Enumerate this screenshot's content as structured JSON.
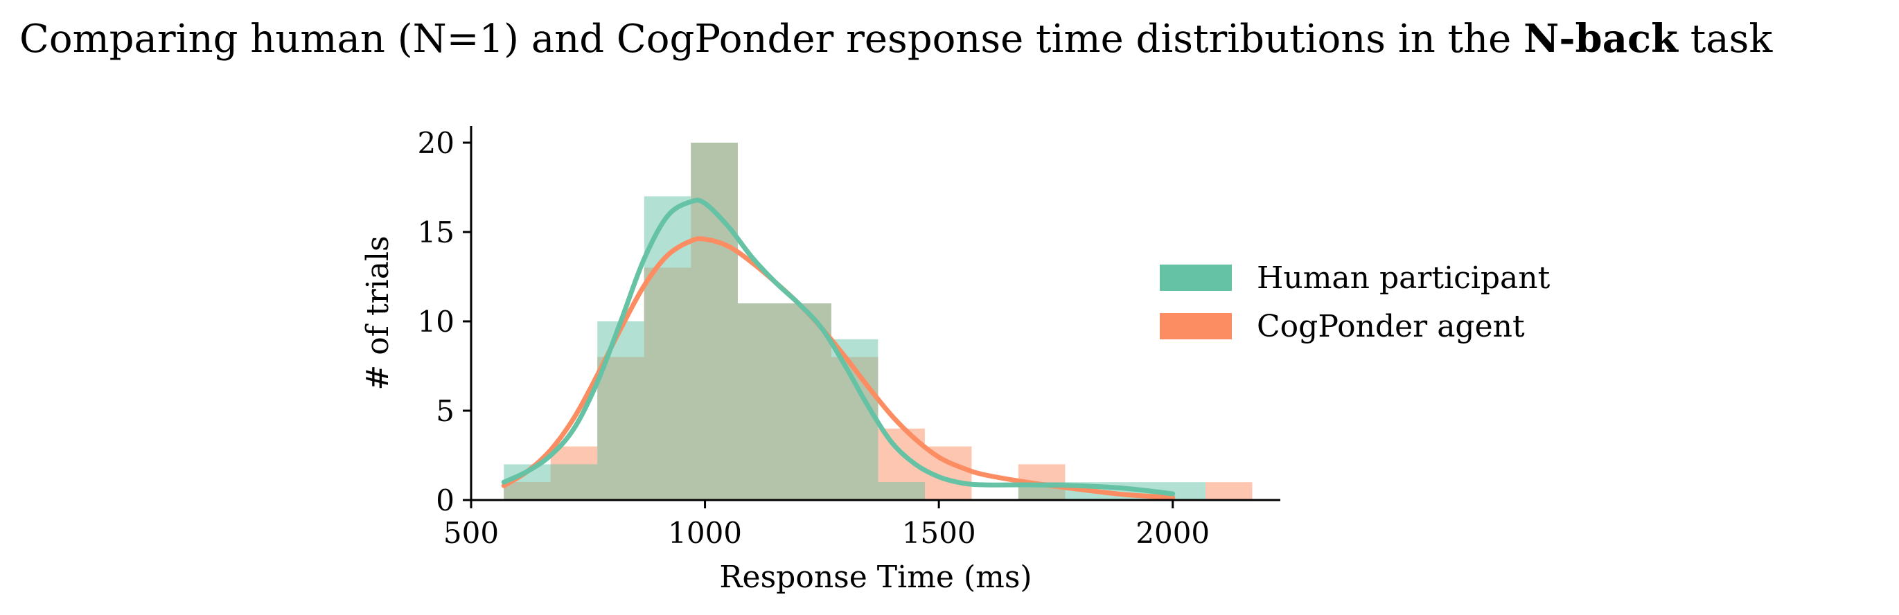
{
  "title": {
    "prefix": "Comparing human (N=1) and CogPonder response time distributions in the ",
    "bold": "N-back",
    "suffix": " task"
  },
  "colors": {
    "human": "#66c2a5",
    "agent": "#fc8d62",
    "overlap": "#b3c4ab"
  },
  "chart_data": {
    "type": "bar",
    "subtype": "overlaid-histogram-with-kde",
    "xlabel": "Response Time (ms)",
    "ylabel": "# of trials",
    "xlim": [
      500,
      2230
    ],
    "ylim": [
      0,
      20
    ],
    "xticks": [
      500,
      1000,
      1500,
      2000
    ],
    "yticks": [
      0,
      5,
      10,
      15,
      20
    ],
    "bin_edges": [
      570,
      670,
      770,
      870,
      970,
      1070,
      1170,
      1270,
      1370,
      1470,
      1570,
      1670,
      1770,
      1870,
      1970,
      2070,
      2170
    ],
    "series": [
      {
        "name": "Human participant",
        "color": "#66c2a5",
        "counts": [
          2,
          2,
          10,
          17,
          20,
          11,
          11,
          9,
          1,
          0,
          0,
          1,
          1,
          1,
          1,
          0
        ],
        "kde": {
          "x": [
            570,
            620,
            670,
            720,
            770,
            820,
            870,
            920,
            970,
            1000,
            1050,
            1100,
            1150,
            1200,
            1250,
            1300,
            1350,
            1400,
            1450,
            1500,
            1550,
            1600,
            1700,
            1800,
            1900,
            2000
          ],
          "y": [
            1.0,
            1.6,
            2.5,
            4.0,
            6.6,
            10.0,
            13.5,
            15.9,
            16.7,
            16.6,
            15.3,
            13.6,
            12.2,
            11.0,
            9.6,
            7.5,
            5.2,
            3.2,
            2.0,
            1.3,
            0.95,
            0.85,
            0.85,
            0.8,
            0.65,
            0.35
          ]
        }
      },
      {
        "name": "CogPonder agent",
        "color": "#fc8d62",
        "counts": [
          1,
          3,
          8,
          13,
          20,
          11,
          11,
          8,
          4,
          3,
          0,
          2,
          0,
          0,
          0,
          1
        ],
        "kde": {
          "x": [
            570,
            620,
            670,
            720,
            770,
            820,
            870,
            920,
            970,
            1000,
            1050,
            1100,
            1150,
            1200,
            1250,
            1300,
            1350,
            1400,
            1450,
            1500,
            1550,
            1600,
            1700,
            1800,
            1900,
            2000
          ],
          "y": [
            0.8,
            1.6,
            2.8,
            4.6,
            7.0,
            9.6,
            12.0,
            13.7,
            14.5,
            14.6,
            14.2,
            13.3,
            12.2,
            11.0,
            9.6,
            8.0,
            6.3,
            4.7,
            3.4,
            2.4,
            1.8,
            1.4,
            0.95,
            0.6,
            0.3,
            0.15
          ]
        }
      }
    ],
    "legend": {
      "position": "right",
      "entries": [
        "Human participant",
        "CogPonder agent"
      ]
    },
    "grid": false
  }
}
